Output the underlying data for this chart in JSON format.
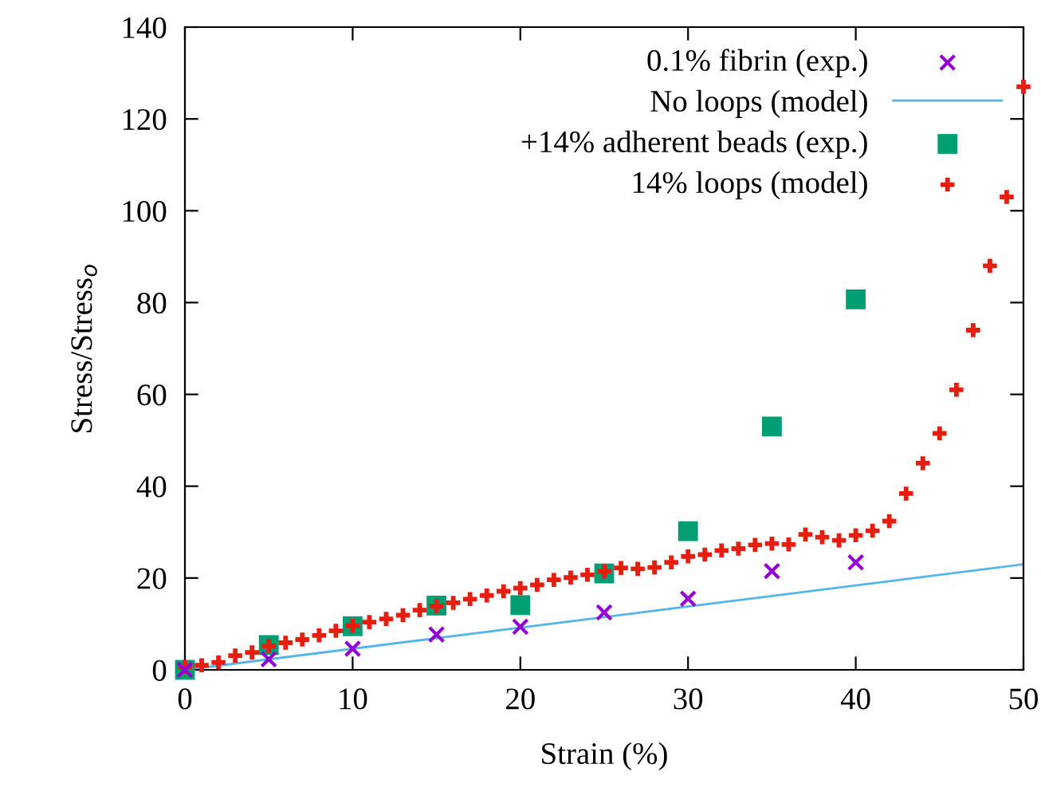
{
  "chart_data": {
    "type": "scatter",
    "xlabel": "Strain (%)",
    "ylabel": "Stress/Stress$_{o}$",
    "xlim": [
      0,
      50
    ],
    "ylim": [
      0,
      140
    ],
    "xticks": [
      0,
      10,
      20,
      30,
      40,
      50
    ],
    "yticks": [
      0,
      20,
      40,
      60,
      80,
      100,
      120,
      140
    ],
    "grid": false,
    "legend": "top right",
    "series": [
      {
        "name": "0.1% fibrin (exp.)",
        "color": "#9400d3",
        "marker": "cross",
        "x": [
          0,
          5,
          10,
          15,
          20,
          25,
          30,
          35,
          40
        ],
        "values": [
          0,
          2.3,
          4.6,
          7.7,
          9.4,
          12.5,
          15.5,
          21.5,
          23.4
        ]
      },
      {
        "name": "No loops (model)",
        "type": "line",
        "color": "#56b4e9",
        "marker": "none",
        "x": [
          0,
          50
        ],
        "values": [
          0,
          23
        ]
      },
      {
        "name": "+14% adherent beads (exp.)",
        "color": "#009e73",
        "marker": "square",
        "x": [
          0,
          5,
          10,
          15,
          20,
          25,
          30,
          35,
          40
        ],
        "values": [
          0,
          5.4,
          9.5,
          14,
          14.1,
          21,
          30.2,
          53,
          80.7
        ]
      },
      {
        "name": "14% loops (model)",
        "color": "#e51e10",
        "marker": "plus",
        "x": [
          0,
          1,
          2,
          3,
          4,
          5,
          6,
          7,
          8,
          9,
          10,
          11,
          12,
          13,
          14,
          15,
          16,
          17,
          18,
          19,
          20,
          21,
          22,
          23,
          24,
          25,
          26,
          27,
          28,
          29,
          30,
          31,
          32,
          33,
          34,
          35,
          36,
          37,
          38,
          39,
          40,
          41,
          42,
          43,
          44,
          45,
          46,
          47,
          48,
          49,
          50
        ],
        "values": [
          0.6,
          1,
          1.6,
          3.1,
          3.8,
          5.2,
          5.9,
          6.6,
          7.5,
          8.5,
          9.6,
          10.4,
          11.1,
          11.9,
          13,
          13.9,
          14.6,
          15.4,
          16.2,
          17.1,
          17.8,
          18.5,
          19.6,
          20.1,
          20.7,
          21.5,
          22.2,
          22,
          22.3,
          23.4,
          24.7,
          25.1,
          26,
          26.4,
          27.2,
          27.5,
          27.3,
          29.5,
          28.9,
          28.2,
          29.3,
          30.3,
          32.4,
          38.4,
          45,
          51.5,
          61,
          74,
          88,
          103,
          127
        ]
      }
    ]
  }
}
